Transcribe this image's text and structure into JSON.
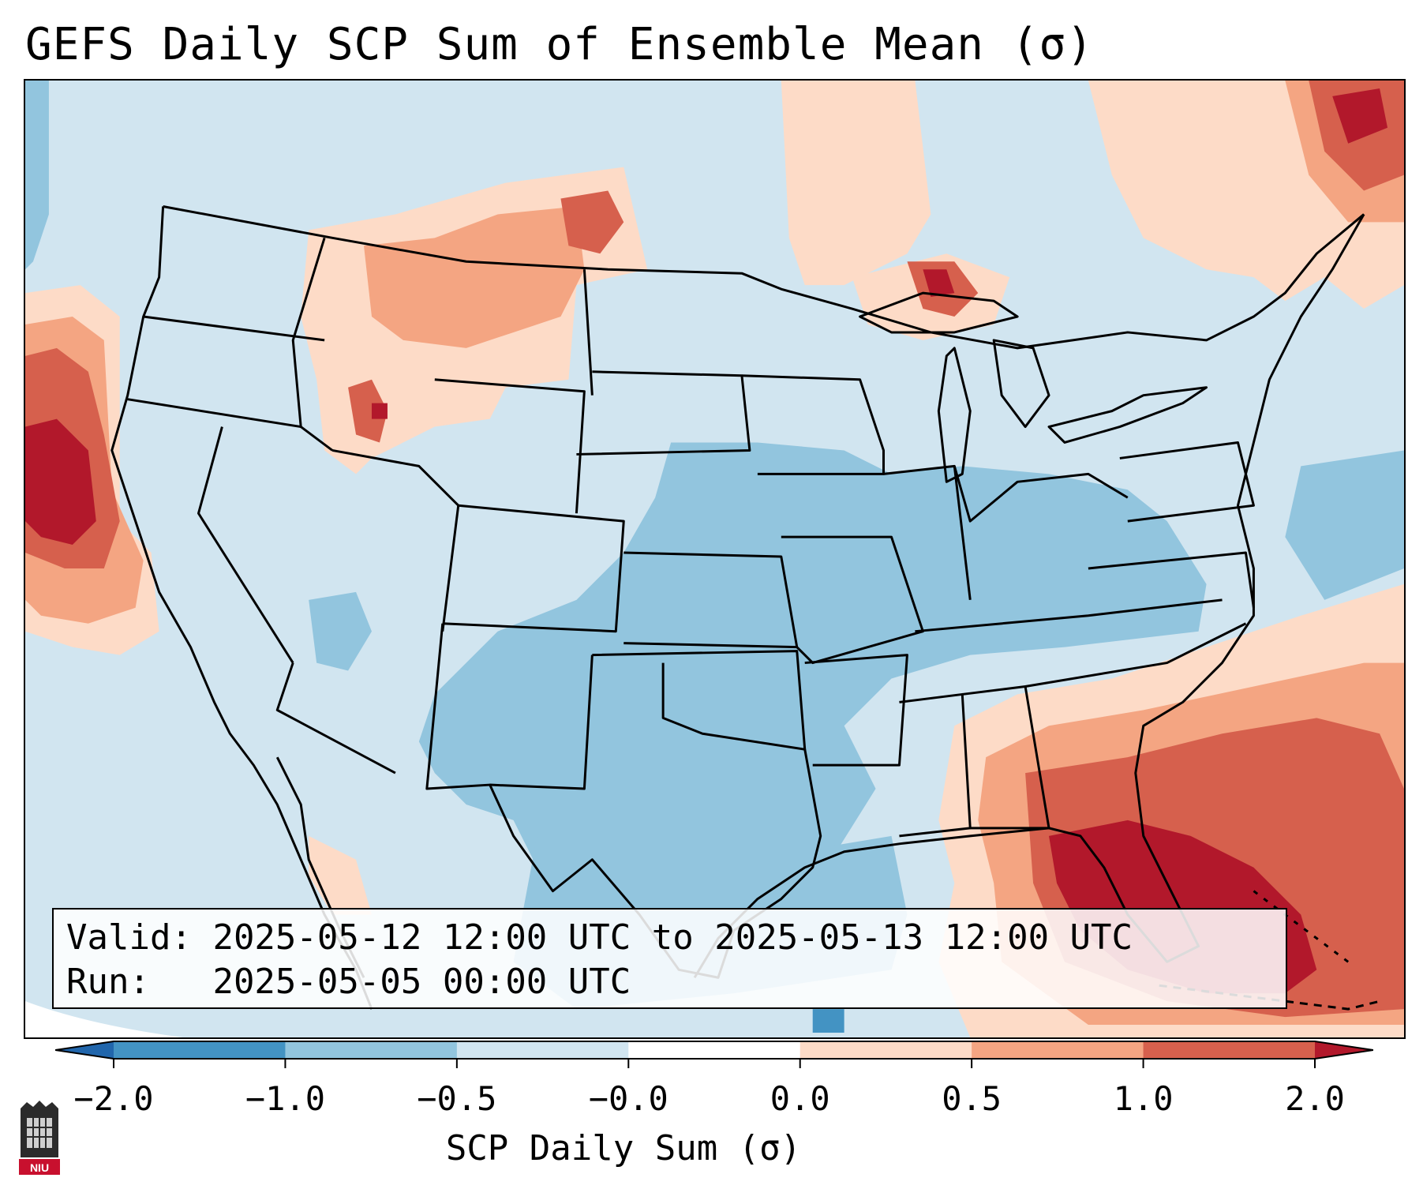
{
  "title": "GEFS Daily SCP Sum of Ensemble Mean (σ)",
  "validity": {
    "valid_label": "Valid:",
    "valid_text": "2025-05-12 12:00 UTC to 2025-05-13 12:00 UTC",
    "run_label": "Run:",
    "run_text": "2025-05-05 00:00 UTC"
  },
  "colorbar": {
    "title": "SCP Daily Sum (σ)",
    "tick_labels": [
      "−2.0",
      "−1.0",
      "−0.5",
      "−0.0",
      "0.0",
      "0.5",
      "1.0",
      "2.0"
    ],
    "colors": [
      "#2166ac",
      "#4393c3",
      "#92c5de",
      "#d1e5f0",
      "#ffffff",
      "#fddbc7",
      "#f4a582",
      "#d6604d",
      "#b2182b"
    ]
  },
  "logo_text": "NIU",
  "palette": {
    "ocean_background": "#d1e5f0",
    "border_color": "#000000"
  }
}
